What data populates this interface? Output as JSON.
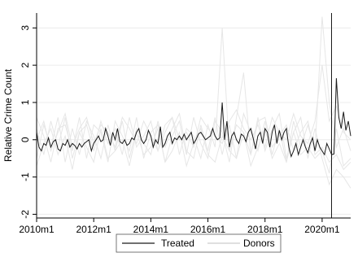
{
  "chart_data": {
    "type": "line",
    "title": "",
    "xlabel": "",
    "ylabel": "Relative Crime Count",
    "xlim": [
      2010.0,
      2021.0
    ],
    "ylim": [
      -2.1,
      3.4
    ],
    "x_ticks": [
      2010,
      2012,
      2014,
      2016,
      2018,
      2020
    ],
    "x_tick_labels": [
      "2010m1",
      "2012m1",
      "2014m1",
      "2016m1",
      "2018m1",
      "2020m1"
    ],
    "y_ticks": [
      -2,
      -1,
      0,
      1,
      2,
      3
    ],
    "y_tick_labels": [
      "-2",
      "-1",
      "0",
      "1",
      "2",
      "3"
    ],
    "grid": true,
    "legend_position": "bottom",
    "treatment_line_x": 2020.33,
    "series": [
      {
        "name": "Treated",
        "color": "#1a1a1a",
        "x_start": 2010.0,
        "x_step": 0.08333,
        "values": [
          0.2,
          -0.2,
          -0.3,
          -0.1,
          -0.15,
          0.05,
          -0.2,
          -0.05,
          0.0,
          -0.25,
          -0.3,
          -0.1,
          -0.15,
          0.0,
          -0.2,
          -0.1,
          -0.15,
          -0.25,
          -0.1,
          -0.2,
          -0.1,
          -0.05,
          0.0,
          -0.3,
          -0.1,
          0.0,
          0.1,
          -0.05,
          0.0,
          0.3,
          0.1,
          -0.15,
          0.2,
          0.0,
          0.3,
          -0.05,
          -0.1,
          0.0,
          -0.15,
          -0.1,
          0.05,
          0.0,
          0.2,
          0.3,
          0.0,
          -0.1,
          0.0,
          0.25,
          0.1,
          -0.2,
          0.0,
          -0.1,
          0.35,
          -0.2,
          -0.1,
          0.1,
          0.2,
          -0.1,
          0.05,
          0.0,
          0.1,
          0.0,
          0.15,
          0.0,
          0.1,
          0.2,
          -0.1,
          0.0,
          0.15,
          0.2,
          0.1,
          0.0,
          0.05,
          0.1,
          0.3,
          0.1,
          0.0,
          0.05,
          1.0,
          0.0,
          0.5,
          -0.2,
          0.1,
          0.2,
          0.0,
          -0.1,
          0.15,
          0.1,
          -0.05,
          0.2,
          0.3,
          0.05,
          -0.25,
          0.1,
          0.2,
          -0.1,
          0.3,
          0.2,
          -0.2,
          0.2,
          0.4,
          -0.1,
          0.25,
          0.0,
          0.2,
          0.3,
          -0.2,
          -0.45,
          -0.3,
          -0.1,
          -0.4,
          -0.2,
          0.0,
          -0.2,
          -0.35,
          -0.1,
          0.05,
          -0.3,
          0.0,
          -0.2,
          -0.3,
          -0.4,
          -0.1,
          -0.25,
          -0.4,
          -0.38,
          1.65,
          0.6,
          0.3,
          0.75,
          0.25,
          0.5,
          0.1
        ]
      },
      {
        "name": "Donors",
        "color": "#e6e6e6",
        "lines": [
          {
            "x_start": 2010.0,
            "x_step": 0.25,
            "values": [
              0.3,
              -0.4,
              0.5,
              -0.2,
              0.6,
              -0.5,
              0.2,
              0.4,
              -0.3,
              0.5,
              -0.1,
              0.3,
              -0.4,
              0.6,
              -0.2,
              0.1,
              0.5,
              -0.3,
              0.2,
              0.6,
              -0.4,
              0.3,
              0.1,
              -0.5,
              0.4,
              -0.2,
              3.0,
              -0.3,
              0.4,
              0.2,
              -0.4,
              0.5,
              0.6,
              -0.2,
              0.1,
              0.4,
              -0.3,
              0.2,
              0.5,
              -0.4,
              -0.2,
              -0.6,
              -0.4,
              -0.8,
              -0.6
            ]
          },
          {
            "x_start": 2010.0,
            "x_step": 0.25,
            "values": [
              -0.5,
              0.4,
              -0.2,
              0.6,
              -0.6,
              0.3,
              -0.4,
              0.5,
              0.1,
              -0.5,
              0.4,
              -0.3,
              0.5,
              -0.5,
              0.3,
              -0.1,
              -0.4,
              0.5,
              -0.2,
              0.3,
              0.7,
              -0.3,
              -0.5,
              0.4,
              -0.3,
              0.6,
              -0.4,
              0.4,
              -0.5,
              0.7,
              0.2,
              -0.3,
              0.5,
              -0.4,
              0.3,
              -0.6,
              0.5,
              -0.2,
              0.4,
              -0.3,
              3.3,
              1.0,
              -0.2,
              0.3,
              -0.3
            ]
          },
          {
            "x_start": 2010.0,
            "x_step": 0.25,
            "values": [
              0.6,
              0.1,
              -0.6,
              0.3,
              0.4,
              -0.3,
              0.6,
              -0.5,
              0.4,
              0.2,
              -0.6,
              0.5,
              0.1,
              -0.3,
              0.6,
              -0.5,
              0.2,
              0.4,
              -0.6,
              0.1,
              0.5,
              -0.4,
              0.6,
              -0.1,
              -0.5,
              0.5,
              0.2,
              -0.6,
              0.6,
              1.8,
              -0.4,
              0.6,
              -0.3,
              0.3,
              0.7,
              -0.5,
              0.2,
              0.6,
              -0.5,
              0.3,
              -0.5,
              -1.2,
              -0.8,
              -1.0,
              -1.3
            ]
          },
          {
            "x_start": 2010.0,
            "x_step": 0.25,
            "values": [
              -0.7,
              -0.1,
              0.3,
              -0.4,
              0.1,
              -0.8,
              0.2,
              -0.2,
              -0.6,
              0.3,
              -0.5,
              -0.3,
              0.0,
              -0.7,
              0.2,
              -0.4,
              -0.2,
              0.3,
              -0.6,
              -0.3,
              0.2,
              -0.7,
              -0.1,
              0.3,
              -0.4,
              -0.6,
              0.1,
              -0.3,
              -0.5,
              0.2,
              -0.7,
              -0.2,
              0.3,
              -0.5,
              -0.1,
              -0.6,
              0.2,
              -0.4,
              -0.2,
              -0.5,
              -0.3,
              -0.9,
              0.3,
              -0.7,
              -0.5
            ]
          },
          {
            "x_start": 2010.0,
            "x_step": 0.25,
            "values": [
              0.0,
              0.5,
              -0.3,
              0.2,
              0.7,
              -0.2,
              0.3,
              0.6,
              -0.1,
              0.4,
              0.2,
              -0.2,
              0.6,
              0.3,
              -0.1,
              0.5,
              0.1,
              -0.3,
              0.4,
              0.6,
              0.0,
              0.2,
              -0.2,
              0.6,
              0.3,
              0.1,
              -0.1,
              0.5,
              0.8,
              0.3,
              0.0,
              0.4,
              -0.2,
              0.6,
              0.2,
              0.0,
              0.7,
              0.1,
              -0.1,
              0.5,
              2.0,
              0.5,
              0.9,
              0.2,
              0.0
            ]
          }
        ]
      }
    ],
    "legend": [
      "Treated",
      "Donors"
    ]
  }
}
